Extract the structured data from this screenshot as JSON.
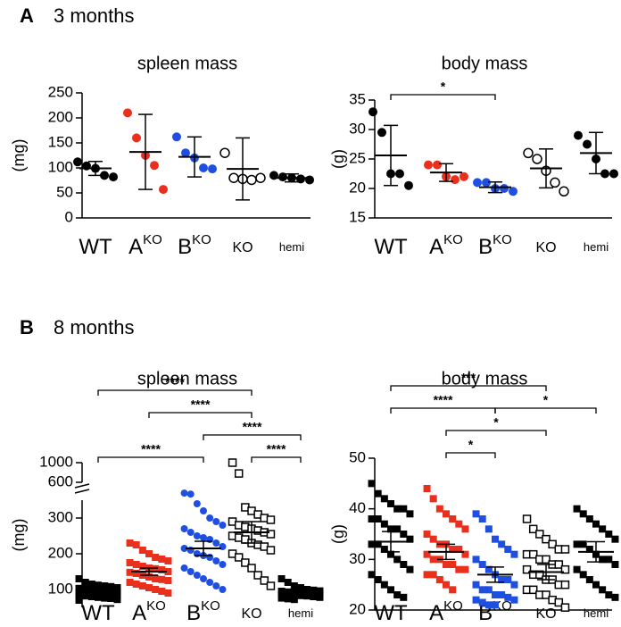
{
  "panels": [
    {
      "letter": "A",
      "title": "3 months"
    },
    {
      "letter": "B",
      "title": "8 months"
    }
  ],
  "chart_data": [
    {
      "type": "scatter",
      "title": "spleen mass",
      "y_label": "(mg)",
      "categories": [
        "WT",
        "A",
        "B",
        "KO",
        "hemi"
      ],
      "category_superscripts": [
        null,
        "KO",
        "KO",
        null,
        null
      ],
      "category_colors": [
        "#000000",
        "#e8301c",
        "#1f4fe0",
        "#888888",
        "#000000"
      ],
      "ylim": [
        0,
        250
      ],
      "yticks": [
        0,
        50,
        100,
        150,
        200,
        250
      ],
      "series": [
        {
          "color": "#000000",
          "filled": true,
          "marker": "circle",
          "values": [
            112,
            104,
            99,
            85,
            82
          ],
          "mean": 99,
          "error": 14
        },
        {
          "color": "#e8301c",
          "filled": true,
          "marker": "circle",
          "values": [
            210,
            160,
            125,
            105,
            57
          ],
          "mean": 132,
          "error": 75
        },
        {
          "color": "#1f4fe0",
          "filled": true,
          "marker": "circle",
          "values": [
            162,
            130,
            120,
            100,
            98
          ],
          "mean": 122,
          "error": 40
        },
        {
          "color": "#000000",
          "filled": false,
          "marker": "circle",
          "values": [
            130,
            80,
            78,
            76,
            80
          ],
          "mean": 98,
          "error": 62
        },
        {
          "color": "#000000",
          "filled": true,
          "marker": "circle",
          "values": [
            85,
            82,
            80,
            78,
            76
          ],
          "mean": 80,
          "error": 8
        }
      ],
      "significance": []
    },
    {
      "type": "scatter",
      "title": "body mass",
      "y_label": "(g)",
      "categories": [
        "WT",
        "A",
        "B",
        "KO",
        "hemi"
      ],
      "category_superscripts": [
        null,
        "KO",
        "KO",
        null,
        null
      ],
      "category_colors": [
        "#000000",
        "#e8301c",
        "#1f4fe0",
        "#888888",
        "#000000"
      ],
      "ylim": [
        15,
        35
      ],
      "yticks": [
        15,
        20,
        25,
        30,
        35
      ],
      "series": [
        {
          "color": "#000000",
          "filled": true,
          "marker": "circle",
          "values": [
            33,
            29.5,
            22.5,
            22.5,
            20.5
          ],
          "mean": 25.6,
          "error": 5.1
        },
        {
          "color": "#e8301c",
          "filled": true,
          "marker": "circle",
          "values": [
            24,
            24,
            22,
            21.5,
            22
          ],
          "mean": 22.7,
          "error": 1.5
        },
        {
          "color": "#1f4fe0",
          "filled": true,
          "marker": "circle",
          "values": [
            21,
            21,
            20,
            20,
            19.5
          ],
          "mean": 20.2,
          "error": 0.9
        },
        {
          "color": "#000000",
          "filled": false,
          "marker": "circle",
          "values": [
            26,
            25,
            23,
            21,
            19.5
          ],
          "mean": 23.4,
          "error": 3.3
        },
        {
          "color": "#000000",
          "filled": true,
          "marker": "circle",
          "values": [
            29,
            27.5,
            25,
            22.5,
            22.5
          ],
          "mean": 26,
          "error": 3.5
        }
      ],
      "significance": [
        {
          "from": 0,
          "to": 2,
          "label": "*"
        }
      ]
    },
    {
      "type": "scatter",
      "title": "spleen mass",
      "y_label": "(mg)",
      "categories": [
        "WT",
        "A",
        "B",
        "KO",
        "hemi"
      ],
      "category_superscripts": [
        null,
        "KO",
        "KO",
        null,
        null
      ],
      "category_colors": [
        "#000000",
        "#e8301c",
        "#1f4fe0",
        "#888888",
        "#000000"
      ],
      "y_segments": [
        {
          "ylim": [
            50,
            350
          ],
          "yticks": [
            100,
            200,
            300
          ]
        },
        {
          "ylim": [
            600,
            1000
          ],
          "yticks": [
            600,
            1000
          ]
        }
      ],
      "series": [
        {
          "color": "#000000",
          "filled": true,
          "marker": "square",
          "values": [
            130,
            120,
            115,
            112,
            110,
            108,
            105,
            103,
            100,
            100,
            98,
            97,
            95,
            95,
            93,
            92,
            90,
            90,
            88,
            87,
            85,
            84,
            82,
            80,
            78,
            76,
            75,
            72,
            70
          ],
          "mean": 95,
          "error": 5
        },
        {
          "color": "#e8301c",
          "filled": true,
          "marker": "square",
          "values": [
            230,
            225,
            210,
            200,
            190,
            185,
            180,
            175,
            170,
            165,
            160,
            158,
            155,
            150,
            148,
            145,
            140,
            135,
            130,
            128,
            125,
            120,
            115,
            110,
            105,
            100,
            95,
            90
          ],
          "mean": 150,
          "error": 10
        },
        {
          "color": "#1f4fe0",
          "filled": true,
          "marker": "circle",
          "values": [
            380,
            360,
            340,
            320,
            300,
            290,
            280,
            270,
            260,
            250,
            245,
            240,
            230,
            220,
            215,
            210,
            200,
            195,
            190,
            180,
            170,
            160,
            150,
            140,
            130,
            120,
            110,
            100
          ],
          "mean": 215,
          "error": 20
        },
        {
          "color": "#000000",
          "filled": false,
          "marker": "square",
          "values": [
            1000,
            780,
            330,
            320,
            310,
            300,
            295,
            290,
            280,
            275,
            270,
            265,
            260,
            255,
            250,
            245,
            240,
            230,
            225,
            220,
            210,
            200,
            190,
            175,
            160,
            140,
            125,
            110
          ],
          "mean": 260,
          "error": 30
        },
        {
          "color": "#000000",
          "filled": true,
          "marker": "square",
          "values": [
            130,
            120,
            110,
            105,
            100,
            98,
            96,
            95,
            93,
            92,
            90,
            90,
            88,
            87,
            86,
            85,
            84,
            83,
            82,
            80,
            78,
            76,
            74,
            72
          ],
          "mean": 90,
          "error": 4
        }
      ],
      "significance": [
        {
          "from": 0,
          "to": 3,
          "label": "****"
        },
        {
          "from": 0,
          "to": 2,
          "label": "****"
        },
        {
          "from": 2,
          "to": 4,
          "label": "****"
        },
        {
          "from": 1,
          "to": 3,
          "label": "****"
        },
        {
          "from": 3,
          "to": 4,
          "label": "****"
        }
      ]
    },
    {
      "type": "scatter",
      "title": "body mass",
      "y_label": "(g)",
      "categories": [
        "WT",
        "A",
        "B",
        "KO",
        "hemi"
      ],
      "category_superscripts": [
        null,
        "KO",
        "KO",
        null,
        null
      ],
      "category_colors": [
        "#000000",
        "#e8301c",
        "#1f4fe0",
        "#888888",
        "#000000"
      ],
      "ylim": [
        20,
        50
      ],
      "yticks": [
        20,
        30,
        40,
        50
      ],
      "series": [
        {
          "color": "#000000",
          "filled": true,
          "marker": "square",
          "values": [
            45,
            43,
            42,
            41,
            40,
            40,
            39,
            38,
            38,
            37,
            36,
            36,
            35,
            34,
            33,
            33,
            32,
            31,
            30,
            29,
            28,
            27,
            26,
            25,
            24,
            23,
            22.5
          ],
          "mean": 33.5,
          "error": 2
        },
        {
          "color": "#e8301c",
          "filled": true,
          "marker": "square",
          "values": [
            44,
            42,
            40,
            39,
            38,
            37,
            36,
            35,
            34,
            33,
            33,
            32,
            32,
            31,
            31,
            30,
            30,
            29,
            29,
            28,
            28,
            27,
            27,
            26,
            25,
            24
          ],
          "mean": 31.5,
          "error": 1.5
        },
        {
          "color": "#1f4fe0",
          "filled": true,
          "marker": "square",
          "values": [
            39,
            38,
            36,
            34,
            33,
            32,
            31,
            30,
            29,
            28,
            27,
            26,
            26,
            25,
            25,
            24,
            24,
            23,
            23,
            22.5,
            22,
            22,
            21.5,
            21,
            21
          ],
          "mean": 27,
          "error": 1.5
        },
        {
          "color": "#000000",
          "filled": false,
          "marker": "square",
          "values": [
            38,
            36,
            35,
            34,
            33,
            32,
            32,
            31,
            31,
            30,
            30,
            29,
            29,
            28,
            28,
            27,
            27,
            26,
            26,
            25,
            25,
            24,
            24,
            23,
            23,
            22,
            21.5,
            20.5
          ],
          "mean": 27.5,
          "error": 1.5
        },
        {
          "color": "#000000",
          "filled": true,
          "marker": "square",
          "values": [
            40,
            39,
            38,
            37,
            36,
            35,
            34,
            33,
            33,
            32,
            31,
            30,
            30,
            29,
            28,
            27,
            26,
            25,
            24,
            23,
            22.5
          ],
          "mean": 31.5,
          "error": 2
        }
      ],
      "significance": [
        {
          "from": 0,
          "to": 3,
          "label": "***"
        },
        {
          "from": 1,
          "to": 3,
          "label": "*"
        },
        {
          "from": 0,
          "to": 2,
          "label": "****"
        },
        {
          "from": 1,
          "to": 2,
          "label": "*"
        },
        {
          "from": 2,
          "to": 4,
          "label": "*"
        }
      ]
    }
  ]
}
